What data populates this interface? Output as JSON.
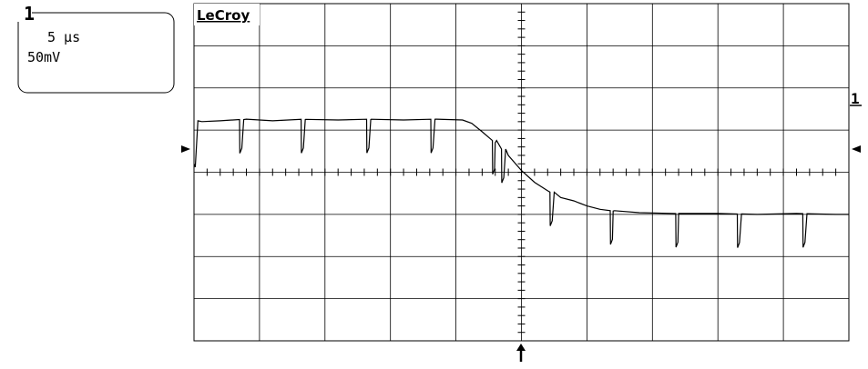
{
  "channel_box": {
    "channel_number": "1",
    "time_per_div": "5 µs",
    "volts_per_div": "50mV"
  },
  "brand": "LeCroy",
  "trace_marker_label": "1",
  "chart_data": {
    "type": "line",
    "title": "",
    "xlabel": "",
    "ylabel": "",
    "grid": true,
    "x_divisions": 10,
    "y_divisions": 8,
    "x_unit": "µs",
    "y_unit": "mV",
    "time_per_div_us": 5,
    "volts_per_div_mV": 50,
    "xlim": [
      -25,
      25
    ],
    "ylim": [
      -200,
      200
    ],
    "series": [
      {
        "points": [
          [
            -25.0,
            10.0
          ],
          [
            -24.9,
            6.0
          ],
          [
            -24.7,
            61.0
          ],
          [
            -24.4,
            60.0
          ],
          [
            -23.0,
            61.0
          ],
          [
            -21.0,
            63.0
          ],
          [
            -19.0,
            61.0
          ],
          [
            -16.5,
            63.0
          ],
          [
            -14.0,
            62.0
          ],
          [
            -11.5,
            63.0
          ],
          [
            -9.0,
            62.0
          ],
          [
            -6.5,
            63.0
          ],
          [
            -4.5,
            62.0
          ],
          [
            -3.8,
            58.0
          ],
          [
            -3.0,
            48.0
          ],
          [
            -2.0,
            35.0
          ],
          [
            -1.0,
            20.0
          ],
          [
            0.0,
            2.0
          ],
          [
            1.0,
            -12.0
          ],
          [
            2.0,
            -22.0
          ],
          [
            3.0,
            -30.0
          ],
          [
            4.0,
            -34.0
          ],
          [
            5.0,
            -40.0
          ],
          [
            6.0,
            -44.0
          ],
          [
            7.0,
            -46.0
          ],
          [
            9.0,
            -48.0
          ],
          [
            12.0,
            -49.0
          ],
          [
            15.0,
            -49.0
          ],
          [
            18.0,
            -50.0
          ],
          [
            21.0,
            -49.0
          ],
          [
            24.0,
            -50.0
          ],
          [
            25.0,
            -50.0
          ]
        ],
        "glitch_times_us": [
          -21.5,
          -16.8,
          -11.8,
          -6.9,
          -2.2,
          -1.5,
          2.2,
          6.8,
          11.8,
          16.5,
          21.5
        ],
        "glitch_depth_mV": 40
      }
    ]
  },
  "colors": {
    "trace": "#000000",
    "grid": "#000000",
    "background": "#ffffff"
  }
}
